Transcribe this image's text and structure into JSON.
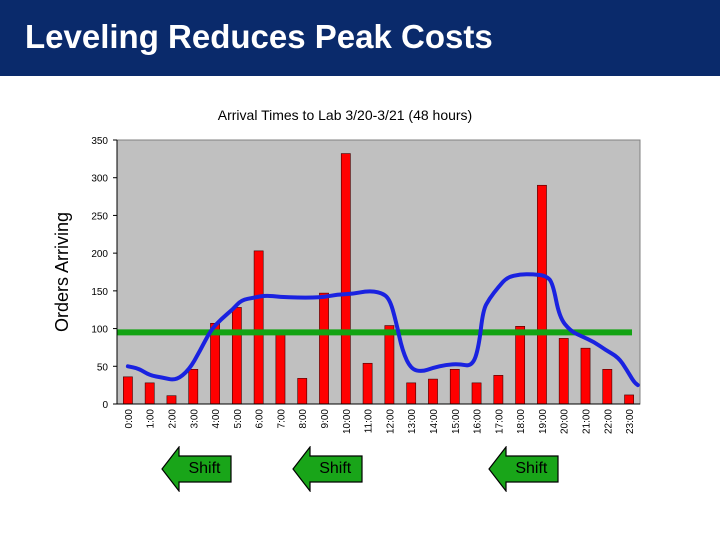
{
  "slide": {
    "title": "Leveling Reduces Peak Costs"
  },
  "colors": {
    "header": "#0a2a6b",
    "plot_bg": "#c0c0c0",
    "bar": "#ff0000",
    "curve": "#1a22e0",
    "level_line": "#13a313",
    "arrow_fill": "#19a519"
  },
  "chart_data": {
    "type": "bar",
    "title": "Arrival Times to Lab 3/20-3/21 (48 hours)",
    "xlabel": "",
    "ylabel": "Orders Arriving",
    "ylim": [
      0,
      350
    ],
    "yticks": [
      0,
      50,
      100,
      150,
      200,
      250,
      300,
      350
    ],
    "grid": false,
    "categories": [
      "0:00",
      "1:00",
      "2:00",
      "3:00",
      "4:00",
      "5:00",
      "6:00",
      "7:00",
      "8:00",
      "9:00",
      "10:00",
      "11:00",
      "12:00",
      "13:00",
      "14:00",
      "15:00",
      "16:00",
      "17:00",
      "18:00",
      "19:00",
      "20:00",
      "21:00",
      "22:00",
      "23:00"
    ],
    "values": [
      36,
      28,
      11,
      46,
      107,
      128,
      203,
      96,
      34,
      147,
      332,
      54,
      104,
      28,
      33,
      46,
      28,
      38,
      103,
      290,
      87,
      74,
      46,
      12
    ],
    "overlays": {
      "level_line_value": 95,
      "smoothed_curve": [
        {
          "x": 0,
          "y": 50
        },
        {
          "x": 0.5,
          "y": 47
        },
        {
          "x": 1,
          "y": 38
        },
        {
          "x": 1.6,
          "y": 35
        },
        {
          "x": 2.2,
          "y": 31
        },
        {
          "x": 2.8,
          "y": 45
        },
        {
          "x": 3.3,
          "y": 70
        },
        {
          "x": 3.8,
          "y": 98
        },
        {
          "x": 4.3,
          "y": 113
        },
        {
          "x": 4.8,
          "y": 125
        },
        {
          "x": 5.2,
          "y": 138
        },
        {
          "x": 5.8,
          "y": 141
        },
        {
          "x": 6.3,
          "y": 144
        },
        {
          "x": 7,
          "y": 142
        },
        {
          "x": 7.8,
          "y": 141
        },
        {
          "x": 8.5,
          "y": 141
        },
        {
          "x": 9,
          "y": 142
        },
        {
          "x": 9.6,
          "y": 145
        },
        {
          "x": 10.3,
          "y": 146
        },
        {
          "x": 11,
          "y": 150
        },
        {
          "x": 11.6,
          "y": 148
        },
        {
          "x": 12,
          "y": 140
        },
        {
          "x": 12.3,
          "y": 110
        },
        {
          "x": 12.6,
          "y": 70
        },
        {
          "x": 13,
          "y": 46
        },
        {
          "x": 13.5,
          "y": 43
        },
        {
          "x": 14,
          "y": 48
        },
        {
          "x": 14.6,
          "y": 52
        },
        {
          "x": 15.2,
          "y": 53
        },
        {
          "x": 15.8,
          "y": 50
        },
        {
          "x": 16.1,
          "y": 75
        },
        {
          "x": 16.3,
          "y": 125
        },
        {
          "x": 16.6,
          "y": 140
        },
        {
          "x": 17,
          "y": 155
        },
        {
          "x": 17.4,
          "y": 168
        },
        {
          "x": 18,
          "y": 172
        },
        {
          "x": 18.6,
          "y": 172
        },
        {
          "x": 19.2,
          "y": 170
        },
        {
          "x": 19.5,
          "y": 160
        },
        {
          "x": 19.8,
          "y": 115
        },
        {
          "x": 20.3,
          "y": 97
        },
        {
          "x": 20.8,
          "y": 90
        },
        {
          "x": 21.4,
          "y": 82
        },
        {
          "x": 21.9,
          "y": 72
        },
        {
          "x": 22.5,
          "y": 62
        },
        {
          "x": 22.9,
          "y": 45
        },
        {
          "x": 23.2,
          "y": 30
        },
        {
          "x": 23.4,
          "y": 25
        }
      ]
    }
  },
  "arrows": [
    {
      "label": "Shift",
      "at_category": "2:00"
    },
    {
      "label": "Shift",
      "at_category": "8:00"
    },
    {
      "label": "Shift",
      "at_category": "17:00"
    }
  ]
}
